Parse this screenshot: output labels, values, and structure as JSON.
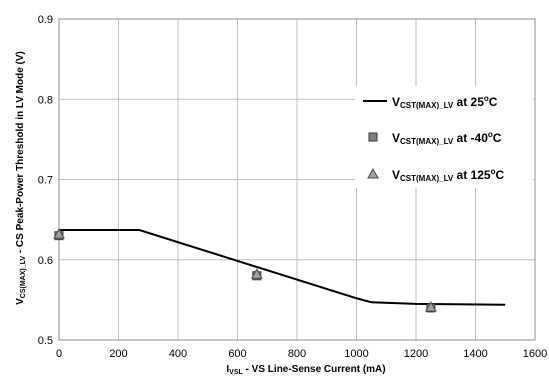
{
  "chart_data": {
    "type": "line",
    "xlabel": {
      "main": "I",
      "sub": "VSL",
      "rest": " - VS Line-Sense Current (mA)"
    },
    "ylabel": {
      "main": "V",
      "sub": "CS(MAX)_LV",
      "rest": " - CS Peak-Power Threshold in LV Mode (V)"
    },
    "xlim": [
      0,
      1600
    ],
    "ylim": [
      0.5,
      0.9
    ],
    "x_ticks": [
      0,
      200,
      400,
      600,
      800,
      1000,
      1200,
      1400,
      1600
    ],
    "y_ticks": [
      0.5,
      0.6,
      0.7,
      0.8,
      0.9
    ],
    "grid": true,
    "legend_position": "right",
    "series": [
      {
        "name": {
          "main": "V",
          "sub": "CST(MAX)_LV",
          "rest": " at 25",
          "deg": "o",
          "unit": "C"
        },
        "style": "line",
        "color": "#000000",
        "x": [
          0,
          270,
          1000,
          1050,
          1200,
          1500
        ],
        "y": [
          0.637,
          0.637,
          0.552,
          0.547,
          0.545,
          0.544
        ]
      },
      {
        "name": {
          "main": "V",
          "sub": "CST(MAX)_LV",
          "rest": " at -40",
          "deg": "o",
          "unit": "C"
        },
        "style": "square",
        "color": "#808080",
        "x": [
          0,
          665,
          1250
        ],
        "y": [
          0.63,
          0.58,
          0.54
        ]
      },
      {
        "name": {
          "main": "V",
          "sub": "CST(MAX)_LV",
          "rest": " at 125",
          "deg": "o",
          "unit": "C"
        },
        "style": "triangle",
        "color": "#a0a0a0",
        "x": [
          0,
          665,
          1250
        ],
        "y": [
          0.632,
          0.582,
          0.541
        ]
      }
    ]
  }
}
